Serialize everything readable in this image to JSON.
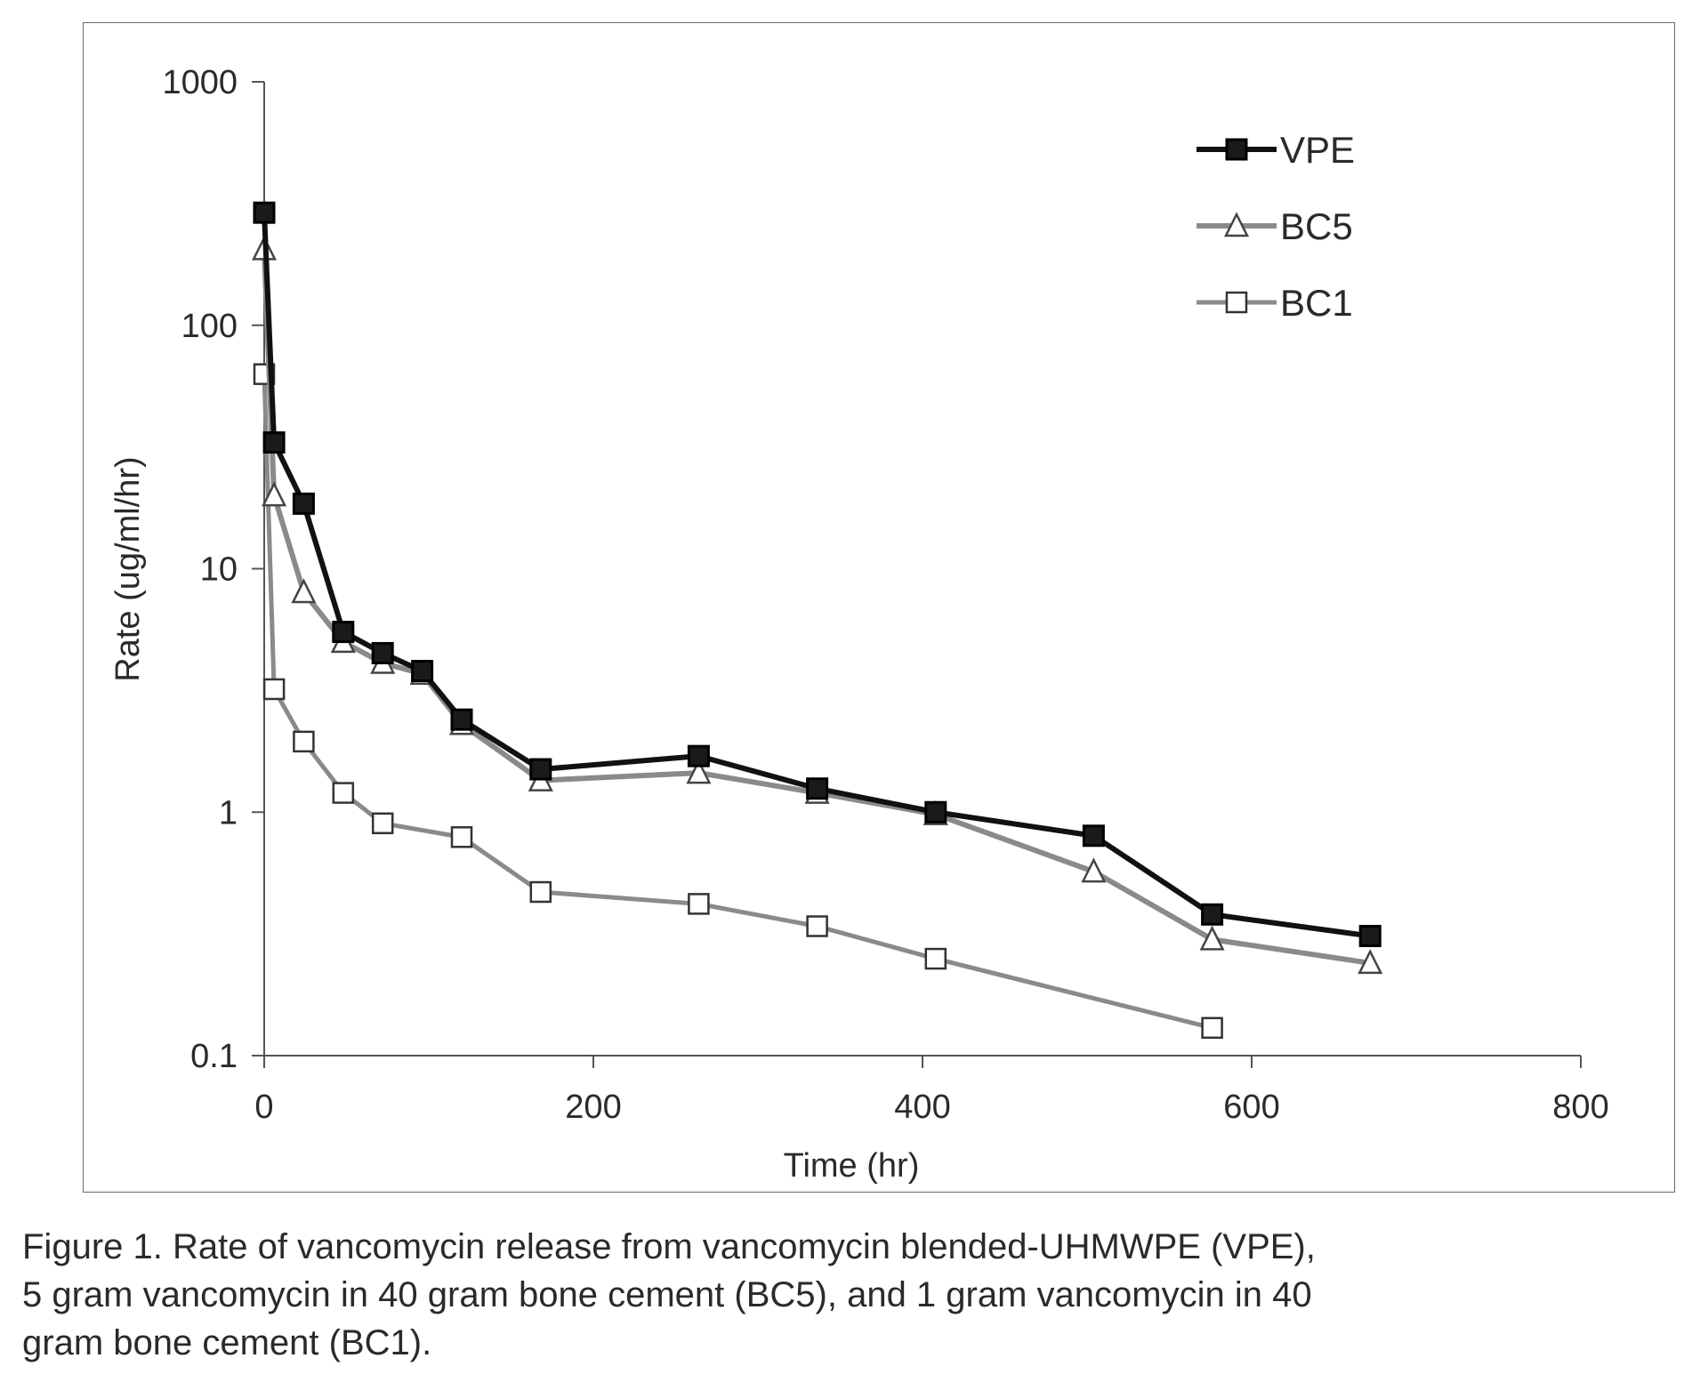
{
  "chart_data": {
    "type": "line",
    "y_scale": "log",
    "xlabel": "Time (hr)",
    "ylabel": "Rate (ug/ml/hr)",
    "xlim": [
      0,
      800
    ],
    "ylim": [
      0.1,
      1000
    ],
    "x_ticks": [
      "0",
      "200",
      "400",
      "600",
      "800"
    ],
    "y_ticks": [
      "0.1",
      "1",
      "10",
      "100",
      "1000"
    ],
    "grid": false,
    "legend_position": "top-right",
    "series": [
      {
        "name": "VPE",
        "marker": "filled-square",
        "color": "#111111",
        "x": [
          0,
          6,
          24,
          48,
          72,
          96,
          120,
          168,
          264,
          336,
          408,
          504,
          576,
          672
        ],
        "y": [
          290,
          33,
          18.5,
          5.5,
          4.5,
          3.8,
          2.4,
          1.5,
          1.7,
          1.25,
          1.0,
          0.8,
          0.38,
          0.31
        ]
      },
      {
        "name": "BC5",
        "marker": "open-triangle",
        "color": "#8a8a8a",
        "x": [
          0,
          6,
          24,
          48,
          72,
          96,
          120,
          168,
          264,
          336,
          408,
          504,
          576,
          672
        ],
        "y": [
          205,
          20,
          8.0,
          5.0,
          4.1,
          3.7,
          2.3,
          1.35,
          1.45,
          1.2,
          0.98,
          0.57,
          0.3,
          0.24
        ]
      },
      {
        "name": "BC1",
        "marker": "open-square",
        "color": "#8a8a8a",
        "x": [
          0,
          6,
          24,
          48,
          72,
          120,
          168,
          264,
          336,
          408,
          576
        ],
        "y": [
          63,
          3.2,
          1.95,
          1.2,
          0.9,
          0.79,
          0.47,
          0.42,
          0.34,
          0.25,
          0.13
        ]
      }
    ]
  },
  "caption": {
    "line1": "Figure 1. Rate of vancomycin release from vancomycin blended-UHMWPE (VPE),",
    "line2": "5 gram vancomycin in 40 gram bone cement (BC5), and 1 gram vancomycin in 40",
    "line3": "gram bone cement (BC1)."
  }
}
